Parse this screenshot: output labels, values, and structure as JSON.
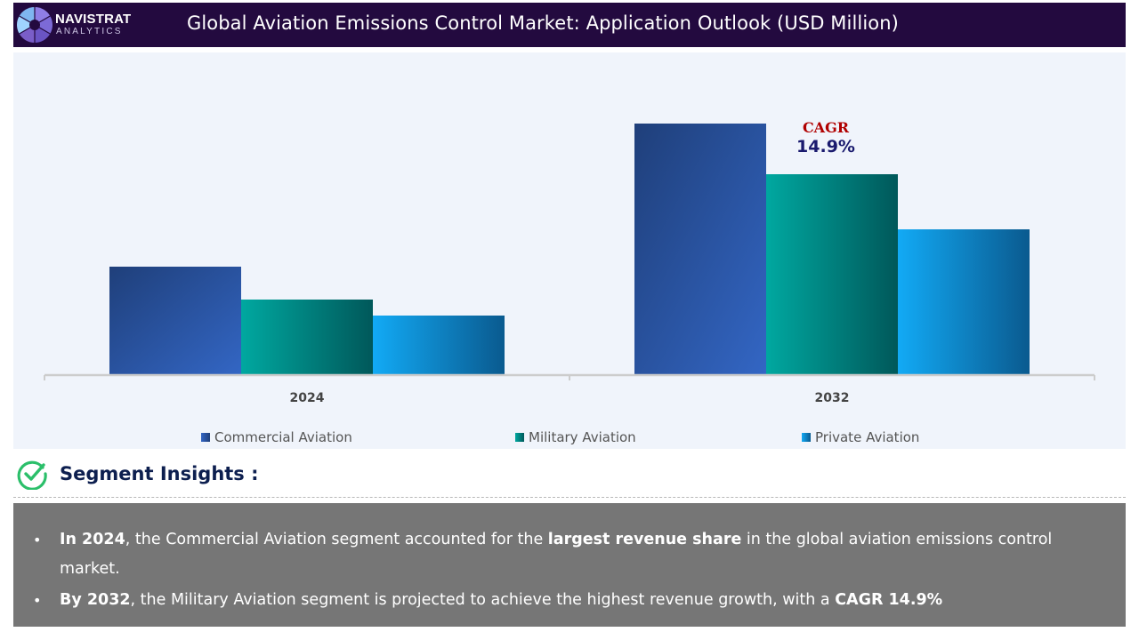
{
  "header": {
    "brand_name": "NAVISTRAT",
    "brand_sub": "ANALYTICS",
    "title": "Global Aviation Emissions Control Market: Application Outlook (USD Million)",
    "colors": {
      "background": "#230a3f"
    }
  },
  "chart_data": {
    "type": "bar",
    "title": "Global Aviation Emissions Control Market: Application Outlook (USD Million)",
    "xlabel": "",
    "ylabel": "",
    "categories": [
      "2024",
      "2032"
    ],
    "series": [
      {
        "name": "Commercial Aviation",
        "values": [
          121,
          282
        ],
        "color": "#3366c4",
        "color_dark": "#1f3f7a"
      },
      {
        "name": "Military Aviation",
        "values": [
          84,
          225
        ],
        "color": "#00a8a0",
        "color_dark": "#00585a"
      },
      {
        "name": "Private Aviation",
        "values": [
          66,
          163
        ],
        "color": "#12aaf5",
        "color_dark": "#0a5a8f"
      }
    ],
    "ylim": [
      0,
      300
    ],
    "y_axis_visible": false,
    "grid": false,
    "legend_position": "bottom",
    "annotation": {
      "label": "CAGR",
      "value": "14.9%",
      "category": "2032",
      "series": "Military Aviation",
      "label_color": "#b00000",
      "value_color": "#1a1a6e"
    },
    "note": "No y-axis ticks shown; values are relative estimates from bar heights"
  },
  "insights": {
    "title": "Segment Insights :",
    "bullets": [
      {
        "parts": [
          {
            "text": "In 2024",
            "bold": true
          },
          {
            "text": ", the Commercial Aviation segment accounted for the ",
            "bold": false
          },
          {
            "text": "largest revenue share",
            "bold": true
          },
          {
            "text": " in the global aviation emissions control market.",
            "bold": false
          }
        ]
      },
      {
        "parts": [
          {
            "text": "By 2032",
            "bold": true
          },
          {
            "text": ", the Military Aviation segment is projected to achieve the highest revenue growth, with a ",
            "bold": false
          },
          {
            "text": "CAGR 14.9%",
            "bold": true
          }
        ]
      }
    ],
    "colors": {
      "title": "#0d1f4f",
      "check": "#2bbf6a",
      "box": "#767676"
    }
  }
}
